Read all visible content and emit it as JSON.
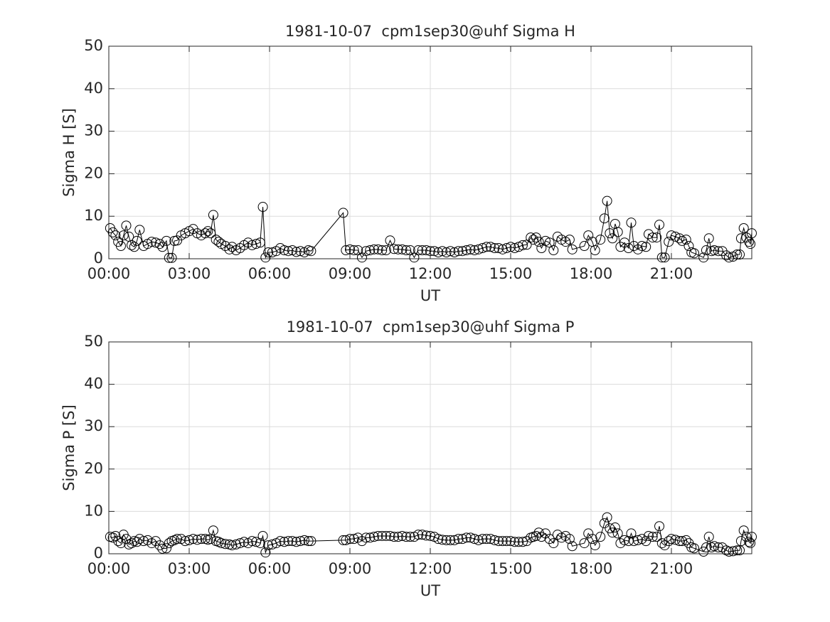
{
  "chart_data": [
    {
      "type": "line",
      "title": "1981-10-07  cpm1sep30@uhf Sigma H",
      "xlabel": "UT",
      "ylabel": "Sigma H [S]",
      "xlim": [
        0,
        24
      ],
      "xticks": [
        {
          "value": 0,
          "label": "00:00"
        },
        {
          "value": 3,
          "label": "03:00"
        },
        {
          "value": 6,
          "label": "06:00"
        },
        {
          "value": 9,
          "label": "09:00"
        },
        {
          "value": 12,
          "label": "12:00"
        },
        {
          "value": 15,
          "label": "15:00"
        },
        {
          "value": 18,
          "label": "18:00"
        },
        {
          "value": 21,
          "label": "21:00"
        }
      ],
      "ylim": [
        0,
        50
      ],
      "yticks": [
        0,
        10,
        20,
        30,
        40,
        50
      ],
      "grid": true,
      "color": "#000000",
      "x": [
        0.05,
        0.15,
        0.25,
        0.35,
        0.45,
        0.55,
        0.65,
        0.75,
        0.85,
        0.95,
        1.05,
        1.15,
        1.3,
        1.45,
        1.6,
        1.75,
        1.9,
        2.0,
        2.15,
        2.25,
        2.35,
        2.45,
        2.55,
        2.7,
        2.85,
        3.0,
        3.15,
        3.3,
        3.45,
        3.6,
        3.7,
        3.8,
        3.9,
        4.0,
        4.1,
        4.2,
        4.35,
        4.5,
        4.6,
        4.75,
        4.9,
        5.05,
        5.2,
        5.35,
        5.5,
        5.65,
        5.75,
        5.85,
        5.95,
        6.1,
        6.25,
        6.4,
        6.55,
        6.7,
        6.85,
        7.0,
        7.15,
        7.3,
        7.45,
        7.55,
        8.75,
        8.85,
        9.0,
        9.15,
        9.3,
        9.45,
        9.6,
        9.75,
        9.9,
        10.05,
        10.2,
        10.35,
        10.5,
        10.65,
        10.8,
        10.95,
        11.1,
        11.25,
        11.4,
        11.55,
        11.7,
        11.85,
        12.0,
        12.15,
        12.3,
        12.45,
        12.6,
        12.75,
        12.9,
        13.05,
        13.2,
        13.35,
        13.5,
        13.65,
        13.8,
        13.95,
        14.1,
        14.25,
        14.4,
        14.55,
        14.7,
        14.85,
        15.0,
        15.15,
        15.3,
        15.45,
        15.6,
        15.75,
        15.85,
        15.95,
        16.05,
        16.15,
        16.3,
        16.45,
        16.6,
        16.75,
        16.9,
        17.05,
        17.2,
        17.3,
        17.75,
        17.9,
        18.05,
        18.15,
        18.35,
        18.5,
        18.6,
        18.7,
        18.8,
        18.9,
        19.0,
        19.1,
        19.25,
        19.4,
        19.5,
        19.6,
        19.75,
        19.9,
        20.05,
        20.15,
        20.3,
        20.45,
        20.55,
        20.65,
        20.75,
        20.9,
        21.0,
        21.15,
        21.3,
        21.4,
        21.55,
        21.65,
        21.75,
        21.85,
        22.2,
        22.3,
        22.4,
        22.5,
        22.6,
        22.75,
        22.9,
        23.05,
        23.15,
        23.3,
        23.45,
        23.55,
        23.6,
        23.7,
        23.8,
        23.9,
        23.95,
        24.0
      ],
      "values": [
        7.2,
        6.2,
        5.5,
        4,
        3,
        5.5,
        7.8,
        5.2,
        3.2,
        2.8,
        4.2,
        6.8,
        3,
        3.5,
        4,
        3.8,
        3.5,
        2.8,
        4.2,
        0.2,
        0.2,
        4.2,
        4.3,
        5.5,
        6,
        6.5,
        7,
        6,
        5.5,
        6,
        6.5,
        6,
        10.3,
        4.5,
        4,
        3.5,
        3,
        2.2,
        2.8,
        2,
        2.5,
        3.2,
        3.8,
        3.2,
        3.5,
        3.8,
        12.2,
        0.3,
        1.5,
        1.5,
        1.8,
        2.5,
        2,
        1.8,
        2,
        1.6,
        1.8,
        1.5,
        2,
        1.8,
        10.8,
        2,
        2.2,
        2,
        2,
        0.3,
        1.8,
        2,
        2.2,
        2.2,
        2,
        2,
        4.3,
        2.3,
        2.2,
        2.2,
        2,
        2,
        0.3,
        2,
        2,
        2,
        1.8,
        1.8,
        1.5,
        1.8,
        1.5,
        1.8,
        1.5,
        1.8,
        1.8,
        2,
        2.2,
        2,
        2.2,
        2.5,
        2.8,
        2.8,
        2.5,
        2.5,
        2.2,
        2.5,
        2.8,
        2.5,
        2.8,
        3.2,
        3.3,
        5,
        4.5,
        5,
        4,
        2.5,
        4.2,
        3.8,
        2,
        5.2,
        4.5,
        4,
        4.5,
        2.2,
        3,
        5.5,
        4,
        2,
        4.5,
        9.5,
        13.6,
        6,
        4.8,
        8.2,
        6.3,
        2.8,
        3.8,
        2.5,
        8.5,
        3,
        2.2,
        3,
        2.8,
        5.8,
        5,
        5,
        8,
        0.3,
        0.3,
        4,
        5.5,
        5.2,
        4.8,
        4.2,
        4.5,
        3,
        1.5,
        1.3,
        0.3,
        2,
        4.8,
        1.8,
        2,
        1.8,
        1.8,
        0.8,
        0.3,
        0.5,
        1,
        1,
        4.8,
        7.2,
        5,
        4,
        3.5,
        6
      ]
    },
    {
      "type": "line",
      "title": "1981-10-07  cpm1sep30@uhf Sigma P",
      "xlabel": "UT",
      "ylabel": "Sigma P [S]",
      "xlim": [
        0,
        24
      ],
      "xticks": [
        {
          "value": 0,
          "label": "00:00"
        },
        {
          "value": 3,
          "label": "03:00"
        },
        {
          "value": 6,
          "label": "06:00"
        },
        {
          "value": 9,
          "label": "09:00"
        },
        {
          "value": 12,
          "label": "12:00"
        },
        {
          "value": 15,
          "label": "15:00"
        },
        {
          "value": 18,
          "label": "18:00"
        },
        {
          "value": 21,
          "label": "21:00"
        }
      ],
      "ylim": [
        0,
        50
      ],
      "yticks": [
        0,
        10,
        20,
        30,
        40,
        50
      ],
      "grid": true,
      "color": "#000000",
      "x": [
        0.05,
        0.15,
        0.25,
        0.35,
        0.45,
        0.55,
        0.65,
        0.75,
        0.85,
        0.95,
        1.05,
        1.15,
        1.3,
        1.45,
        1.6,
        1.75,
        1.9,
        2.0,
        2.15,
        2.25,
        2.35,
        2.45,
        2.55,
        2.7,
        2.85,
        3.0,
        3.15,
        3.3,
        3.45,
        3.6,
        3.7,
        3.8,
        3.9,
        4.0,
        4.1,
        4.2,
        4.35,
        4.5,
        4.6,
        4.75,
        4.9,
        5.05,
        5.2,
        5.35,
        5.5,
        5.65,
        5.75,
        5.85,
        5.95,
        6.1,
        6.25,
        6.4,
        6.55,
        6.7,
        6.85,
        7.0,
        7.15,
        7.3,
        7.45,
        7.55,
        8.75,
        8.85,
        9.0,
        9.15,
        9.3,
        9.45,
        9.6,
        9.75,
        9.9,
        10.05,
        10.2,
        10.35,
        10.5,
        10.65,
        10.8,
        10.95,
        11.1,
        11.25,
        11.4,
        11.55,
        11.7,
        11.85,
        12.0,
        12.15,
        12.3,
        12.45,
        12.6,
        12.75,
        12.9,
        13.05,
        13.2,
        13.35,
        13.5,
        13.65,
        13.8,
        13.95,
        14.1,
        14.25,
        14.4,
        14.55,
        14.7,
        14.85,
        15.0,
        15.15,
        15.3,
        15.45,
        15.6,
        15.75,
        15.85,
        15.95,
        16.05,
        16.15,
        16.3,
        16.45,
        16.6,
        16.75,
        16.9,
        17.05,
        17.2,
        17.3,
        17.75,
        17.9,
        18.05,
        18.15,
        18.35,
        18.5,
        18.6,
        18.7,
        18.8,
        18.9,
        19.0,
        19.1,
        19.25,
        19.4,
        19.5,
        19.6,
        19.75,
        19.9,
        20.05,
        20.15,
        20.3,
        20.45,
        20.55,
        20.65,
        20.75,
        20.9,
        21.0,
        21.15,
        21.3,
        21.4,
        21.55,
        21.65,
        21.75,
        21.85,
        22.2,
        22.3,
        22.4,
        22.5,
        22.6,
        22.75,
        22.9,
        23.05,
        23.15,
        23.3,
        23.45,
        23.55,
        23.6,
        23.7,
        23.8,
        23.9,
        23.95,
        24.0
      ],
      "values": [
        4,
        3.8,
        4.2,
        3,
        2.5,
        4.5,
        3.5,
        2.2,
        2.5,
        3,
        2.8,
        3.5,
        3,
        3.2,
        2.5,
        3,
        2,
        1.2,
        1.3,
        2.5,
        3,
        3.2,
        3.5,
        3.5,
        3,
        3.2,
        3.5,
        3.3,
        3.5,
        3.5,
        3.3,
        3.5,
        5.5,
        3,
        2.8,
        2.5,
        2.3,
        2.2,
        2,
        2.2,
        2.5,
        2.8,
        2.5,
        3,
        2.8,
        2.5,
        4.2,
        0.3,
        2,
        2.2,
        2.5,
        3,
        2.8,
        3,
        3,
        2.8,
        3,
        3.2,
        3,
        3,
        3.2,
        3.2,
        3.5,
        3.5,
        3.8,
        3,
        3.8,
        3.8,
        4,
        4.2,
        4.2,
        4.2,
        4.2,
        4,
        4,
        4.2,
        4,
        4,
        4,
        4.5,
        4.5,
        4.3,
        4.2,
        4,
        3.5,
        3.3,
        3.2,
        3.2,
        3.2,
        3.5,
        3.5,
        3.8,
        3.8,
        3.5,
        3.2,
        3.5,
        3.5,
        3.5,
        3.2,
        3,
        3,
        3,
        3,
        2.8,
        2.8,
        2.8,
        3,
        3.8,
        4,
        4.2,
        5,
        4,
        4.8,
        3.5,
        2.5,
        4.5,
        3.8,
        4.2,
        3.5,
        1.8,
        2.5,
        4.8,
        3.5,
        2,
        4,
        7.2,
        8.6,
        6,
        5,
        6.2,
        4.8,
        2.5,
        3.2,
        3,
        4.8,
        3,
        3.2,
        3.5,
        3,
        4.2,
        4,
        4,
        6.5,
        2.5,
        2,
        3,
        3.5,
        3.3,
        3,
        3,
        3.2,
        2.5,
        1.5,
        1.3,
        0.5,
        1.5,
        4,
        1.5,
        1.8,
        1.5,
        1.5,
        0.8,
        0.5,
        0.6,
        0.8,
        0.8,
        3,
        5.5,
        4,
        2.8,
        2.5,
        4
      ]
    }
  ]
}
